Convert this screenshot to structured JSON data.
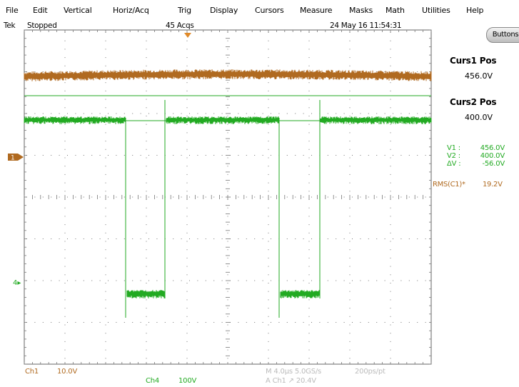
{
  "menu": [
    "File",
    "Edit",
    "Vertical",
    "Horiz/Acq",
    "Trig",
    "Display",
    "Cursors",
    "Measure",
    "Masks",
    "Math",
    "Utilities",
    "Help"
  ],
  "status": {
    "brand": "Tek",
    "run_state": "Stopped",
    "acqs": "45 Acqs",
    "datetime": "24 May 16 11:54:31"
  },
  "right_panel": {
    "buttons_label": "Buttons",
    "curs1_title": "Curs1 Pos",
    "curs1_value": "456.0V",
    "curs2_title": "Curs2 Pos",
    "curs2_value": "400.0V",
    "v1_label": "V1 :",
    "v1_value": "456.0V",
    "v2_label": "V2 :",
    "v2_value": "400.0V",
    "dv_label": "ΔV :",
    "dv_value": "-56.0V"
  },
  "measurement": {
    "label": "RMS(C1)*",
    "value": "19.2V"
  },
  "channels": {
    "ch1": {
      "label": "Ch1",
      "scale": "10.0V",
      "marker": "1",
      "color": "#b06a20"
    },
    "ch4": {
      "label": "Ch4",
      "scale": "100V",
      "marker": "4",
      "color": "#22aa22"
    }
  },
  "bottom": {
    "timebase": "M 4.0μs 5.0GS/s",
    "resolution": "200ps/pt",
    "trigger": "A  Ch1  ↗  20.4V"
  },
  "colors": {
    "ch1": "#b06a20",
    "ch4": "#22aa22",
    "grid": "#555555",
    "cursor": "#22aa22",
    "trigger": "#e08a2a"
  }
}
